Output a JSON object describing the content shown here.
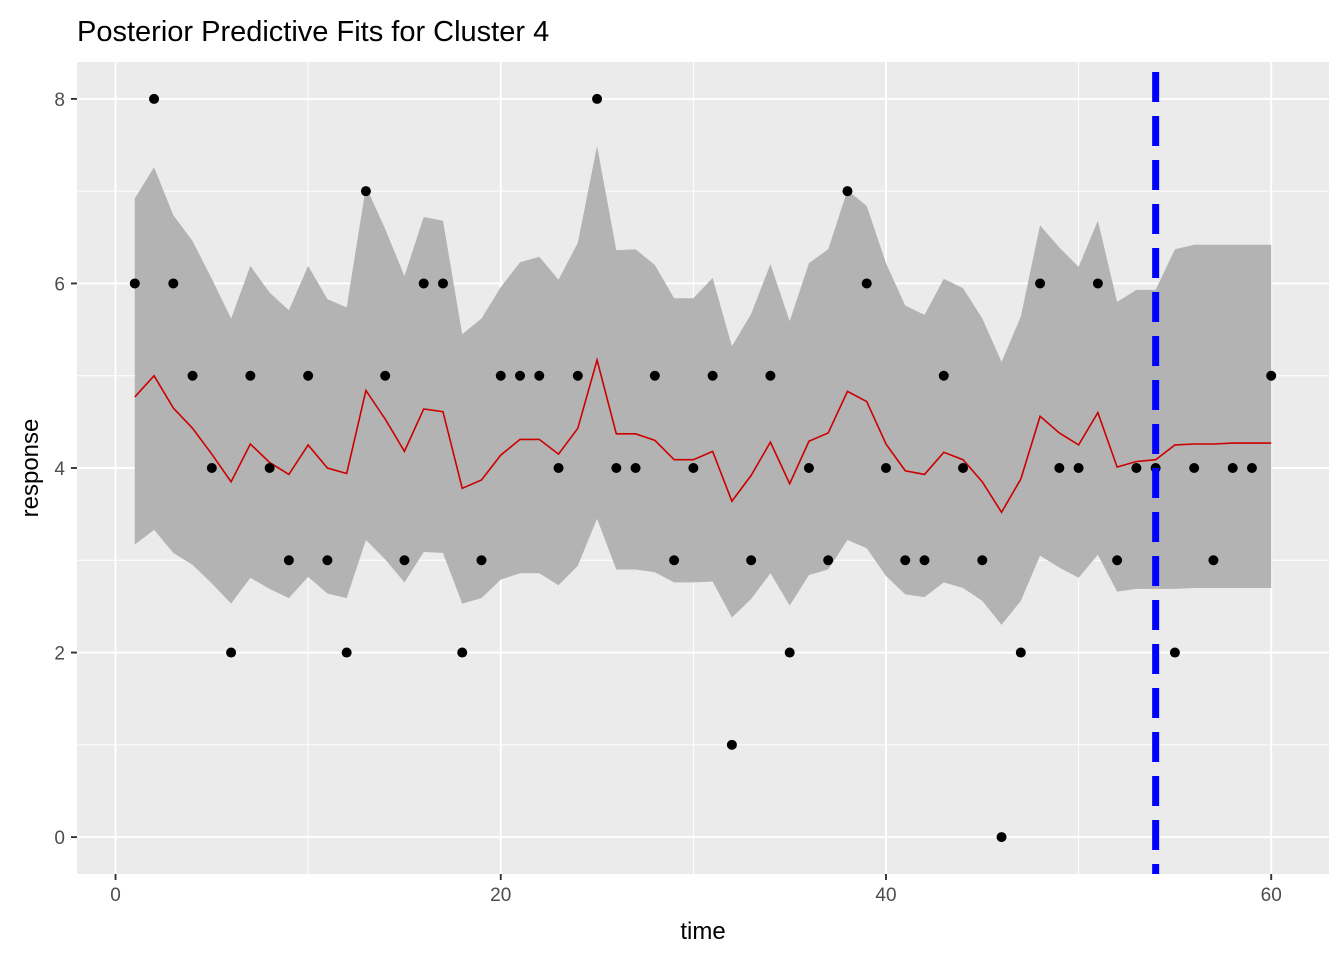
{
  "chart_data": {
    "type": "line",
    "title": "Posterior Predictive Fits for Cluster 4",
    "xlabel": "time",
    "ylabel": "response",
    "xlim": [
      -2.0,
      63.0
    ],
    "ylim": [
      -0.4,
      8.4
    ],
    "xticks": [
      0,
      20,
      40,
      60
    ],
    "yticks": [
      0,
      2,
      4,
      6,
      8
    ],
    "grid": true,
    "colors": {
      "panel": "#ebebeb",
      "band": "#b3b3b3",
      "fit_line": "#cc0000",
      "points": "#000000",
      "vline": "#0000ff"
    },
    "vline_x": 54,
    "time": [
      1,
      2,
      3,
      4,
      5,
      6,
      7,
      8,
      9,
      10,
      11,
      12,
      13,
      14,
      15,
      16,
      17,
      18,
      19,
      20,
      21,
      22,
      23,
      24,
      25,
      26,
      27,
      28,
      29,
      30,
      31,
      32,
      33,
      34,
      35,
      36,
      37,
      38,
      39,
      40,
      41,
      42,
      43,
      44,
      45,
      46,
      47,
      48,
      49,
      50,
      51,
      52,
      53,
      54,
      55,
      56,
      57,
      58,
      59,
      60
    ],
    "observed": [
      6,
      8,
      6,
      5,
      4,
      2,
      5,
      4,
      3,
      5,
      3,
      2,
      7,
      5,
      3,
      6,
      6,
      2,
      3,
      5,
      5,
      5,
      4,
      5,
      8,
      4,
      4,
      5,
      3,
      4,
      5,
      1,
      3,
      5,
      2,
      4,
      3,
      7,
      6,
      4,
      3,
      3,
      5,
      4,
      3,
      0,
      2,
      6,
      4,
      4,
      6,
      3,
      4,
      4,
      2,
      4,
      3,
      4,
      4,
      5
    ],
    "fit": [
      4.77,
      5.0,
      4.65,
      4.43,
      4.15,
      3.85,
      4.26,
      4.06,
      3.93,
      4.25,
      4.0,
      3.94,
      4.84,
      4.53,
      4.18,
      4.64,
      4.61,
      3.78,
      3.87,
      4.14,
      4.31,
      4.31,
      4.15,
      4.43,
      5.17,
      4.37,
      4.37,
      4.3,
      4.09,
      4.09,
      4.18,
      3.64,
      3.92,
      4.28,
      3.83,
      4.29,
      4.38,
      4.83,
      4.72,
      4.26,
      3.97,
      3.93,
      4.17,
      4.09,
      3.85,
      3.52,
      3.88,
      4.56,
      4.38,
      4.25,
      4.6,
      4.01,
      4.07,
      4.09,
      4.25,
      4.26,
      4.26,
      4.27,
      4.27,
      4.27
    ],
    "upper": [
      6.92,
      7.26,
      6.74,
      6.46,
      6.05,
      5.62,
      6.19,
      5.9,
      5.71,
      6.19,
      5.83,
      5.74,
      7.05,
      6.59,
      6.08,
      6.72,
      6.68,
      5.45,
      5.62,
      5.96,
      6.23,
      6.29,
      6.04,
      6.44,
      7.49,
      6.36,
      6.37,
      6.2,
      5.84,
      5.84,
      6.06,
      5.32,
      5.67,
      6.21,
      5.59,
      6.22,
      6.37,
      7.01,
      6.84,
      6.22,
      5.76,
      5.66,
      6.05,
      5.95,
      5.62,
      5.15,
      5.64,
      6.63,
      6.39,
      6.18,
      6.68,
      5.8,
      5.93,
      5.93,
      6.37,
      6.42,
      6.42,
      6.42,
      6.42,
      6.42
    ],
    "lower": [
      3.17,
      3.33,
      3.08,
      2.95,
      2.75,
      2.53,
      2.81,
      2.69,
      2.59,
      2.82,
      2.64,
      2.59,
      3.22,
      3.01,
      2.76,
      3.09,
      3.08,
      2.53,
      2.59,
      2.79,
      2.86,
      2.86,
      2.73,
      2.94,
      3.45,
      2.9,
      2.9,
      2.87,
      2.76,
      2.76,
      2.77,
      2.38,
      2.58,
      2.86,
      2.51,
      2.84,
      2.9,
      3.22,
      3.13,
      2.83,
      2.63,
      2.6,
      2.76,
      2.7,
      2.56,
      2.3,
      2.56,
      3.05,
      2.92,
      2.81,
      3.06,
      2.66,
      2.69,
      2.69,
      2.69,
      2.7,
      2.7,
      2.7,
      2.7,
      2.7
    ]
  }
}
